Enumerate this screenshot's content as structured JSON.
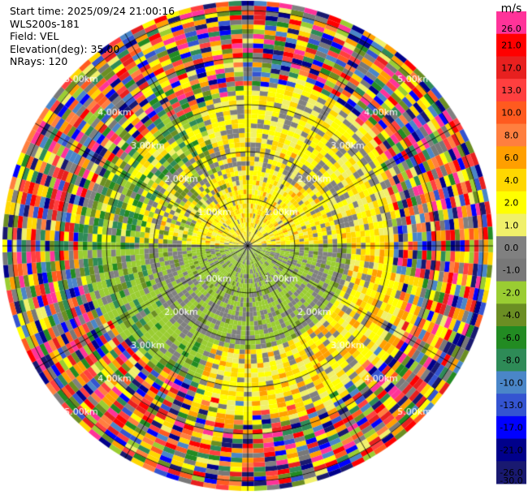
{
  "header": {
    "start_time": "Start time: 2025/09/24 21:00:16",
    "instrument": "WLS200s-181",
    "field": "Field: VEL",
    "elevation": "Elevation(deg): 35.00",
    "nrays": "NRays: 120"
  },
  "chart_data": {
    "type": "heatmap",
    "subtype": "ppi-polar",
    "field": "VEL",
    "units": "m/s",
    "elevation_deg": 35.0,
    "n_rays": 120,
    "range_ring_labels": [
      "1.00km",
      "2.00km",
      "3.00km",
      "4.00km",
      "5.00km"
    ],
    "colorbar": {
      "label": "m/s",
      "tick_labels": [
        "26.0",
        "21.0",
        "17.0",
        "13.0",
        "10.0",
        "8.0",
        "6.0",
        "4.0",
        "2.0",
        "1.0",
        "0.0",
        "-1.0",
        "-2.0",
        "-4.0",
        "-6.0",
        "-8.0",
        "-10.0",
        "-13.0",
        "-17.0",
        "-21.0",
        "-26.0",
        "-30.0"
      ],
      "colors": [
        "#ff3399",
        "#ff0000",
        "#e8201f",
        "#ff3f3f",
        "#ff5a1f",
        "#ff7f3f",
        "#ff9f00",
        "#ffd700",
        "#ffff00",
        "#f0f06a",
        "#808080",
        "#787878",
        "#9acd32",
        "#6b8e23",
        "#228b22",
        "#2e8b57",
        "#4a86c8",
        "#3454d1",
        "#0000ff",
        "#00008b",
        "#191970"
      ]
    },
    "regions": [
      {
        "range_km": [
          0,
          2.2
        ],
        "azimuth_deg": [
          270,
          90
        ],
        "dominant_velocity": "2.0 to 4.0"
      },
      {
        "range_km": [
          0,
          2.2
        ],
        "azimuth_deg": [
          90,
          270
        ],
        "dominant_velocity": "-1.0 to -2.0"
      },
      {
        "range_km": [
          2.2,
          3.3
        ],
        "azimuth_deg": [
          0,
          360
        ],
        "dominant_velocity": "mixed"
      },
      {
        "range_km": [
          3.3,
          5.5
        ],
        "azimuth_deg": [
          0,
          360
        ],
        "dominant_velocity": "noise"
      }
    ]
  }
}
